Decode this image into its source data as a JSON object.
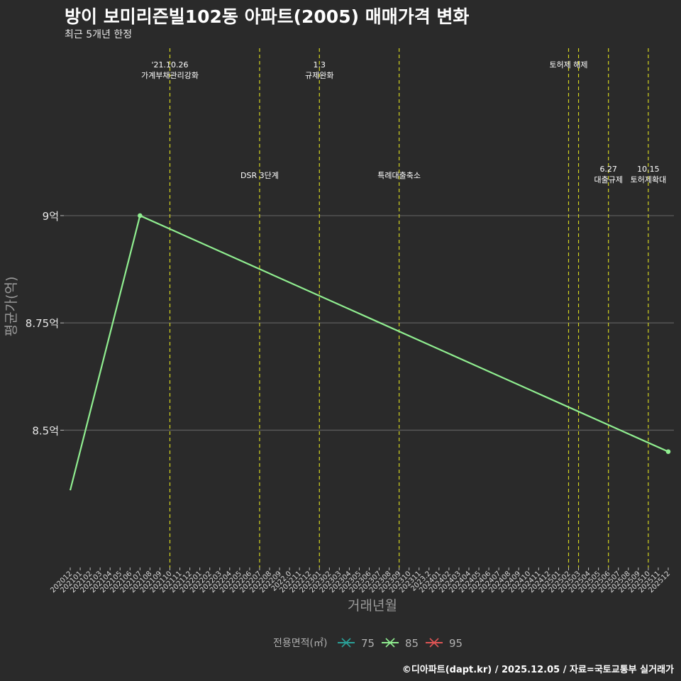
{
  "title": "방이 보미리즌빌102동 아파트(2005) 매매가격 변화",
  "subtitle": "최근 5개년 한정",
  "caption": "©디아파트(dapt.kr) / 2025.12.05 / 자료=국토교통부 실거래가",
  "chart_data": {
    "type": "line",
    "xlabel": "거래년월",
    "ylabel": "평균가(억)",
    "ylim": [
      8.18,
      9.4
    ],
    "y_ticks": [
      {
        "value": 8.5,
        "label": "8.5억"
      },
      {
        "value": 8.75,
        "label": "8.75억"
      },
      {
        "value": 9.0,
        "label": "9억"
      }
    ],
    "categories": [
      "202012",
      "202101",
      "202102",
      "202103",
      "202104",
      "202105",
      "202106",
      "202107",
      "202108",
      "202109",
      "202110",
      "202111",
      "202112",
      "202201",
      "202202",
      "202203",
      "202204",
      "202205",
      "202206",
      "202207",
      "202208",
      "202209",
      "202210",
      "202211",
      "202212",
      "202301",
      "202302",
      "202303",
      "202304",
      "202305",
      "202306",
      "202307",
      "202308",
      "202309",
      "202310",
      "202311",
      "202312",
      "202401",
      "202402",
      "202403",
      "202404",
      "202405",
      "202406",
      "202407",
      "202408",
      "202409",
      "202410",
      "202411",
      "202412",
      "202501",
      "202502",
      "202503",
      "202504",
      "202505",
      "202506",
      "202507",
      "202508",
      "202509",
      "202510",
      "202511",
      "202512"
    ],
    "x_tick_labels": [
      "202012",
      "202101",
      "202102",
      "202103",
      "202104",
      "202105",
      "202106",
      "202107",
      "202108",
      "202109",
      "202110",
      "202111",
      "202112",
      "202201",
      "202202",
      "202203",
      "202204",
      "202205",
      "202206",
      "202207",
      "202208",
      "202209",
      "2022.0",
      "202211",
      "202212",
      "202301",
      "202302",
      "202303",
      "202304",
      "202305",
      "202306",
      "202307",
      "202308",
      "202309",
      "202310",
      "202311",
      "2023.2",
      "202401",
      "202402",
      "202403",
      "202404",
      "202405",
      "202406",
      "202407",
      "202408",
      "202409",
      "202410",
      "202411",
      "202412",
      "202501",
      "202502",
      "202503",
      "202504",
      "202505",
      "202506",
      "202507",
      "202508",
      "202509",
      "202510",
      "202511",
      "202512"
    ],
    "series": [
      {
        "name": "75",
        "color": "#2aa198",
        "points": []
      },
      {
        "name": "85",
        "color": "#90ee90",
        "points": [
          {
            "x": "202012",
            "y": 8.36,
            "marker": false
          },
          {
            "x": "202107",
            "y": 9.0,
            "marker": true
          },
          {
            "x": "202512",
            "y": 8.45,
            "marker": true
          }
        ]
      },
      {
        "name": "95",
        "color": "#e05555",
        "points": []
      }
    ],
    "legend_title": "전용면적(㎡)",
    "legend_position": "bottom",
    "events": [
      {
        "x": "202110",
        "lines": [
          "'21.10.26",
          "가계부채관리강화"
        ],
        "level": "top"
      },
      {
        "x": "202207",
        "lines": [
          "DSR 3단계"
        ],
        "level": "mid"
      },
      {
        "x": "202301",
        "lines": [
          "1.3",
          "규제완화"
        ],
        "level": "top"
      },
      {
        "x": "202309",
        "lines": [
          "특례대출축소"
        ],
        "level": "mid"
      },
      {
        "x": "202502",
        "lines": [
          "토허제 해제"
        ],
        "level": "top"
      },
      {
        "x": "202503",
        "lines": [],
        "level": "none"
      },
      {
        "x": "202506",
        "lines": [
          "6.27",
          "대출규제"
        ],
        "level": "mid"
      },
      {
        "x": "202510",
        "lines": [
          "10.15",
          "토허제확대"
        ],
        "level": "mid"
      }
    ]
  }
}
